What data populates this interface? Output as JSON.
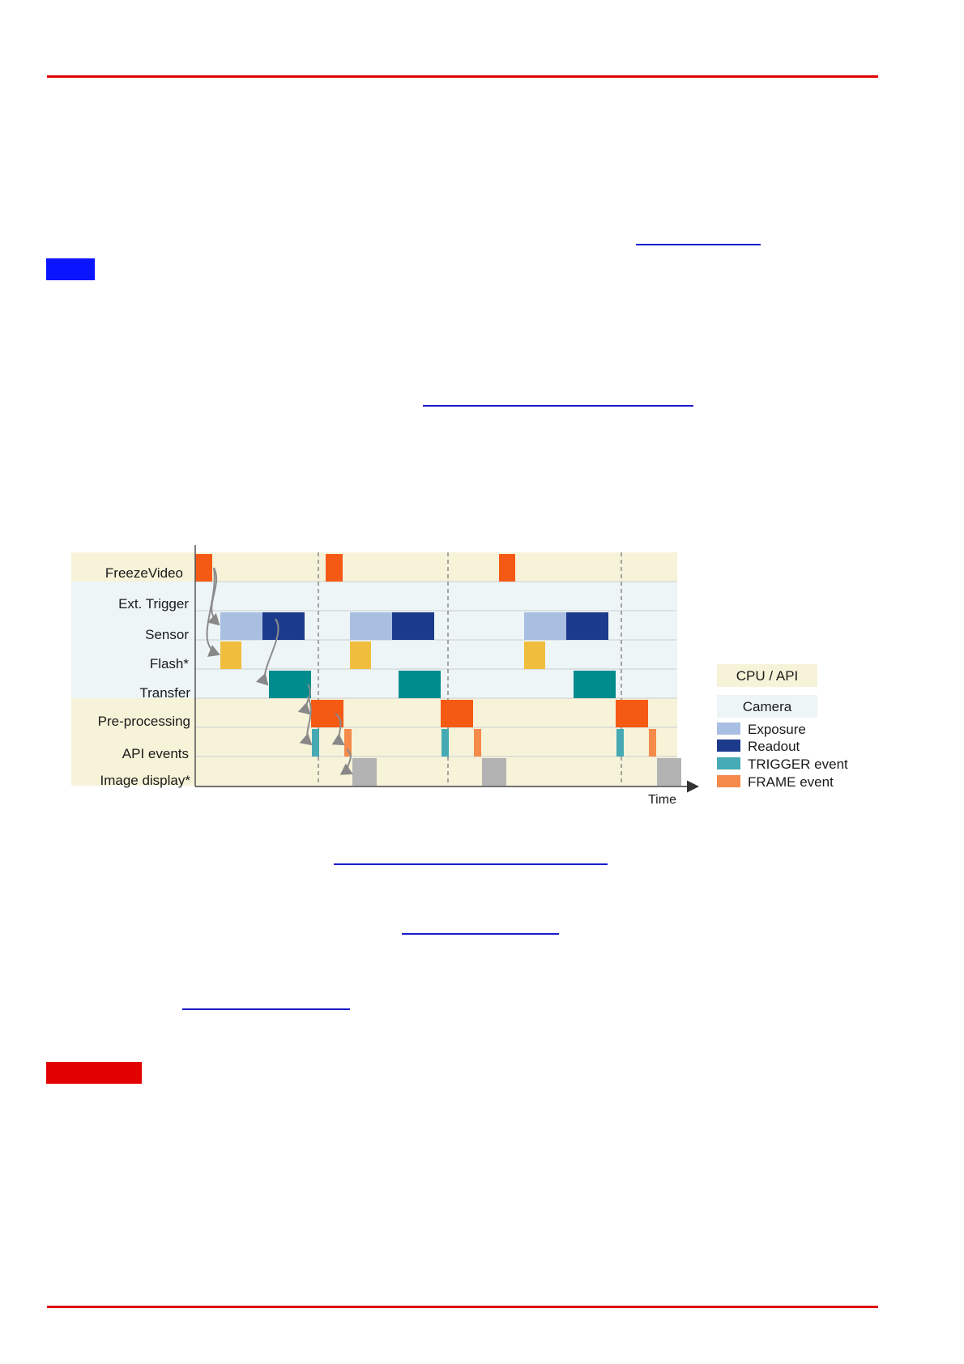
{
  "lanes": [
    {
      "key": "freeze",
      "label": "FreezeVideo"
    },
    {
      "key": "trigger",
      "label": "Ext. Trigger"
    },
    {
      "key": "sensor",
      "label": "Sensor"
    },
    {
      "key": "flash",
      "label": "Flash*"
    },
    {
      "key": "transfer",
      "label": "Transfer"
    },
    {
      "key": "preproc",
      "label": "Pre-processing"
    },
    {
      "key": "api",
      "label": "API events"
    },
    {
      "key": "display",
      "label": "Image display*"
    }
  ],
  "axis_label": "Time",
  "legend": {
    "cpu_label": "CPU / API",
    "camera_label": "Camera",
    "items": [
      {
        "key": "exposure",
        "label": "Exposure",
        "color": "#a9bfe2"
      },
      {
        "key": "readout",
        "label": "Readout",
        "color": "#1c3a8c"
      },
      {
        "key": "trigger_event",
        "label": "TRIGGER event",
        "color": "#46aab4"
      },
      {
        "key": "frame_event",
        "label": "FRAME event",
        "color": "#f58a4a"
      }
    ]
  },
  "colors": {
    "cpu_band": "#f6f3d9",
    "camera_band": "#eef5f6",
    "freeze": "#f55a14",
    "flash": "#f0bd3d",
    "transfer": "#008c8c",
    "preproc": "#f55a14",
    "display": "#b3b3b3"
  }
}
